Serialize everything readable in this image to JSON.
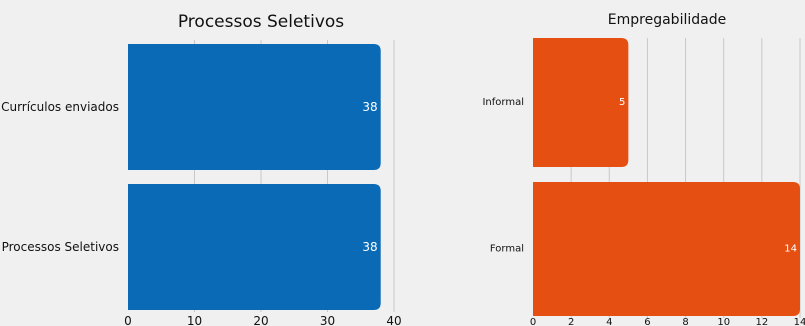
{
  "chart_data": [
    {
      "type": "bar",
      "orientation": "horizontal",
      "title": "Processos Seletivos",
      "categories": [
        "Currículos enviados",
        "Processos Seletivos"
      ],
      "values": [
        38,
        38
      ],
      "data_labels": [
        "38",
        "38"
      ],
      "xlim": [
        0,
        40
      ],
      "xticks": [
        0,
        10,
        20,
        30,
        40
      ],
      "grid": true,
      "color": "#0a6ab6"
    },
    {
      "type": "bar",
      "orientation": "horizontal",
      "title": "Empregabilidade",
      "categories": [
        "Informal",
        "Formal"
      ],
      "values": [
        5,
        14
      ],
      "data_labels": [
        "5",
        "14"
      ],
      "xlim": [
        0,
        14
      ],
      "xticks": [
        0,
        2,
        4,
        6,
        8,
        10,
        12,
        14
      ],
      "grid": true,
      "color": "#e64f12"
    }
  ]
}
